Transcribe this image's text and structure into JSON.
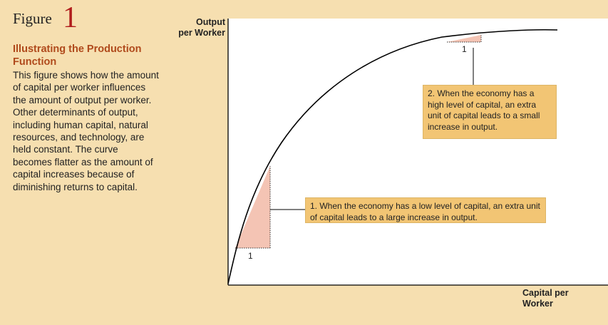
{
  "figure": {
    "label": "Figure",
    "number": "1",
    "title": "Illustrating the Production Function",
    "caption": "This figure shows how the amount of capital per worker influences the amount of output per worker. Other determinants of output, including human capital, natural resources, and technology, are held constant. The curve becomes flatter as the amount of capital increases because of diminishing returns to capital."
  },
  "axes": {
    "y_label_line1": "Output",
    "y_label_line2": "per Worker",
    "x_label_line1": "Capital per",
    "x_label_line2": "Worker"
  },
  "annotations": {
    "low_capital": "1. When the economy has a low level of capital, an extra unit of capital leads to a large increase in output.",
    "high_capital": "2. When the economy has a high level of capital, an extra unit of capital leads to a small increase in output.",
    "unit_low": "1",
    "unit_high": "1"
  },
  "colors": {
    "background": "#f6dfb0",
    "figure_number": "#b01c1c",
    "title": "#b04a1c",
    "callout": "#f2c574",
    "triangle_fill": "#f4c4b4",
    "curve": "#000000"
  }
}
